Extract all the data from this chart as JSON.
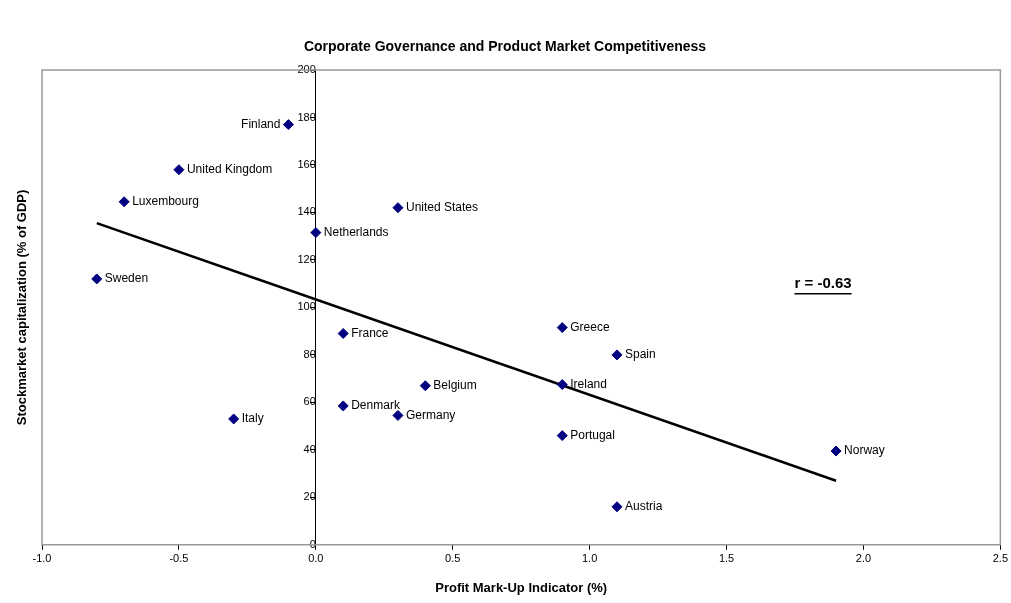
{
  "chart_data": {
    "type": "scatter",
    "title": "Corporate Governance and Product Market Competitiveness",
    "xlabel": "Profit Mark-Up Indicator (%)",
    "ylabel": "Stockmarket capitalization (% of GDP)",
    "xlim": [
      -1.0,
      2.5
    ],
    "xticks": [
      {
        "value": -1,
        "label": "-1.0"
      },
      {
        "value": -0.5,
        "label": "-0.5"
      },
      {
        "value": 0,
        "label": "0.0"
      },
      {
        "value": 0.5,
        "label": "0.5"
      },
      {
        "value": 1,
        "label": "1.0"
      },
      {
        "value": 1.5,
        "label": "1.5"
      },
      {
        "value": 2,
        "label": "2.0"
      },
      {
        "value": 2.5,
        "label": "2.5"
      }
    ],
    "ylim": [
      0,
      200
    ],
    "yticks": [
      0,
      20,
      40,
      60,
      80,
      100,
      120,
      140,
      160,
      180,
      200
    ],
    "grid": false,
    "legend": false,
    "marker": "diamond",
    "series": [
      {
        "color": "#000080",
        "x": [
          -0.1,
          -0.5,
          -0.7,
          -0.8,
          0.0,
          0.3,
          0.1,
          0.4,
          0.1,
          0.3,
          -0.3,
          0.9,
          1.1,
          0.9,
          0.9,
          1.9,
          1.1
        ],
        "values": [
          177,
          158,
          144.5,
          112,
          131.5,
          142,
          89,
          67,
          58.5,
          54.5,
          53,
          91.5,
          80,
          67.5,
          46,
          39.5,
          16
        ]
      },
      {
        "type": "line",
        "color": "#000000",
        "marker": "none",
        "x": [
          -0.8,
          1.9
        ],
        "values": [
          135.5,
          27
        ]
      }
    ],
    "annotations": [
      {
        "text": "Finland",
        "x": -0.1,
        "y": 177
      },
      {
        "text": "United Kingdom",
        "x": -0.5,
        "y": 158
      },
      {
        "text": "Luxembourg",
        "x": -0.7,
        "y": 144.5
      },
      {
        "text": "Sweden",
        "x": -0.8,
        "y": 112
      },
      {
        "text": "Netherlands",
        "x": 0.0,
        "y": 131.5
      },
      {
        "text": "United States",
        "x": 0.3,
        "y": 142
      },
      {
        "text": "France",
        "x": 0.1,
        "y": 89
      },
      {
        "text": "Belgium",
        "x": 0.4,
        "y": 67
      },
      {
        "text": "Denmark",
        "x": 0.1,
        "y": 58.5
      },
      {
        "text": "Germany",
        "x": 0.3,
        "y": 54.5
      },
      {
        "text": "Italy",
        "x": -0.3,
        "y": 53
      },
      {
        "text": "Greece",
        "x": 0.9,
        "y": 91.5
      },
      {
        "text": "Spain",
        "x": 1.1,
        "y": 80
      },
      {
        "text": "Ireland",
        "x": 0.9,
        "y": 67.5
      },
      {
        "text": "Portugal",
        "x": 0.9,
        "y": 46
      },
      {
        "text": "Norway",
        "x": 1.9,
        "y": 39.5
      },
      {
        "text": "Austria",
        "x": 1.1,
        "y": 16
      },
      "r = -0.63"
    ]
  }
}
